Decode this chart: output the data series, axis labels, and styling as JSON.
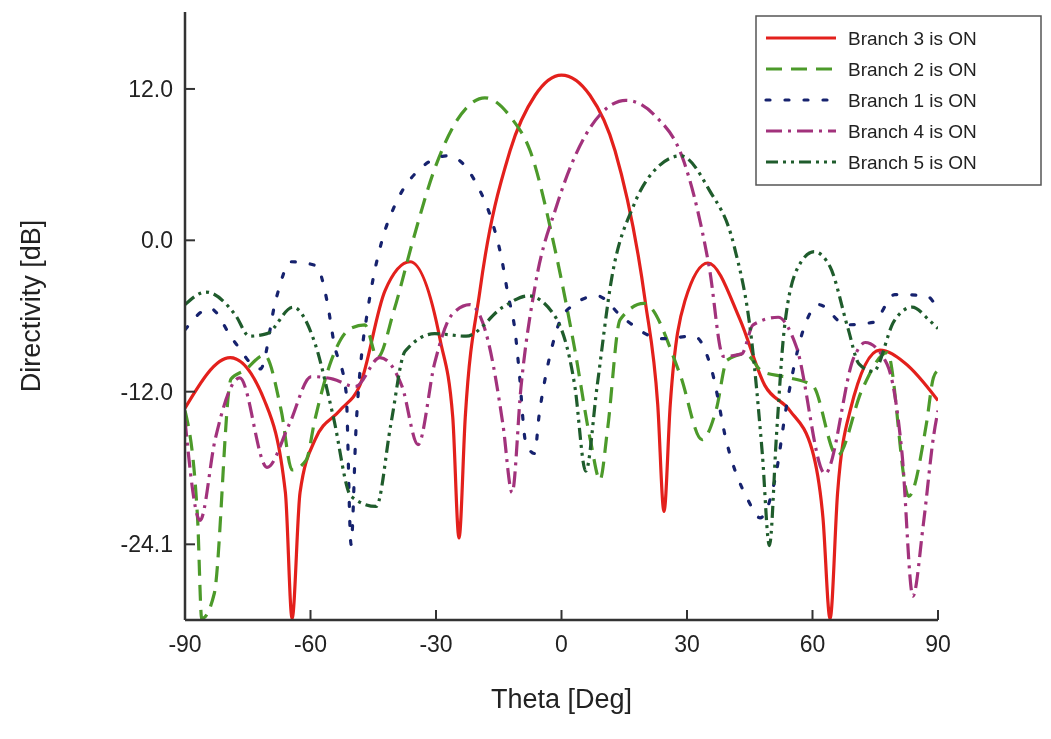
{
  "chart_data": {
    "type": "line",
    "xlabel": "Theta [Deg]",
    "ylabel": "Directivity [dB]",
    "xlim": [
      -90,
      90
    ],
    "xticks": [
      -90,
      -60,
      -30,
      0,
      30,
      60,
      90
    ],
    "ylim": [
      -30.1,
      18.1
    ],
    "yticks": [
      {
        "value": 12,
        "label": "12.0"
      },
      {
        "value": 0,
        "label": "0.0"
      },
      {
        "value": -12,
        "label": "-12.0"
      },
      {
        "value": -24.1,
        "label": "-24.1"
      }
    ],
    "grid": false,
    "legend": "top right",
    "series": [
      {
        "name": "Branch 3 is ON",
        "color": "#e3201c",
        "line_style": "solid",
        "x": [
          -90,
          -79.2,
          -71,
          -66,
          -64.4,
          -62.5,
          -58.9,
          -53,
          -48.2,
          -42.2,
          -36.2,
          -29,
          -26,
          -24.5,
          -23,
          -19.5,
          -12.3,
          -6.3,
          0,
          6.8,
          12.8,
          20,
          23,
          24.5,
          26,
          29.5,
          35,
          42.7,
          48.6,
          54.6,
          59.9,
          62.5,
          64.2,
          66,
          69,
          76.1,
          82,
          90
        ],
        "values": [
          -13.3,
          -9.3,
          -12.7,
          -20,
          -30,
          -20,
          -15.8,
          -13.5,
          -11.5,
          -4,
          -1.7,
          -7.9,
          -14,
          -23.6,
          -14,
          -4,
          7.1,
          11.5,
          13.1,
          11.5,
          7.1,
          -4.8,
          -13,
          -21.5,
          -13,
          -4.8,
          -1.8,
          -6.3,
          -11.5,
          -13.5,
          -16.6,
          -22,
          -30,
          -20,
          -13.5,
          -8.7,
          -9.7,
          -12.7
        ]
      },
      {
        "name": "Branch 2 is ON",
        "color": "#4c9a2a",
        "line_style": "dashed",
        "x": [
          -90,
          -87,
          -86,
          -83,
          -79,
          -75.7,
          -71,
          -67,
          -64.4,
          -61,
          -59,
          -55,
          -50.5,
          -47,
          -44,
          -40,
          -35.5,
          -30.5,
          -25,
          -18.3,
          -12,
          -7.5,
          -1.5,
          3.2,
          7,
          9.2,
          11,
          14,
          19.7,
          28.3,
          33.6,
          37,
          39.6,
          43.9,
          48,
          53,
          60,
          65.9,
          71.9,
          77.9,
          83,
          87.2,
          88.9,
          90
        ],
        "values": [
          -13.5,
          -22,
          -30,
          -28,
          -11,
          -10.3,
          -9.1,
          -13.5,
          -18.2,
          -17.4,
          -14.3,
          -9.5,
          -7,
          -6.7,
          -9.3,
          -5.5,
          0,
          5.5,
          9.5,
          11.3,
          9.7,
          7.1,
          -0.8,
          -8.7,
          -16,
          -19,
          -15,
          -6.3,
          -5,
          -10.6,
          -15.8,
          -13.4,
          -9.5,
          -9,
          -10.4,
          -10.8,
          -11.5,
          -17.1,
          -11.8,
          -8.9,
          -20.3,
          -14.6,
          -10.9,
          -10.3
        ]
      },
      {
        "name": "Branch 1 is ON",
        "color": "#16226e",
        "line_style": "dotted",
        "x": [
          -90,
          -84,
          -78.5,
          -72,
          -68.2,
          -64.7,
          -58.7,
          -56,
          -54.4,
          -51.5,
          -50.3,
          -49.1,
          -47.7,
          -46.5,
          -45,
          -42.9,
          -39.8,
          -35.5,
          -27.1,
          -20.2,
          -16.6,
          -14.4,
          -12.8,
          -11.1,
          -10.2,
          -8.5,
          -6.4,
          -5.4,
          -4.2,
          -2.3,
          0.8,
          8.5,
          14.9,
          23.8,
          31.7,
          36,
          39.4,
          44.6,
          47.5,
          51,
          53.9,
          57.7,
          61.5,
          68,
          74.5,
          79.7,
          87.2,
          90
        ],
        "values": [
          -7.1,
          -5.4,
          -7.9,
          -10.2,
          -4.6,
          -1.7,
          -2,
          -4.9,
          -8.1,
          -12,
          -24.1,
          -14.8,
          -8.8,
          -5.9,
          -3,
          0,
          2.8,
          5.1,
          6.7,
          4.4,
          1.5,
          -1.3,
          -4.3,
          -7.2,
          -10.1,
          -16.1,
          -16.9,
          -14,
          -11.5,
          -8.5,
          -5.7,
          -4.4,
          -6.2,
          -7.8,
          -7.6,
          -10.4,
          -15.9,
          -20.6,
          -22,
          -19,
          -12.9,
          -7.2,
          -5.1,
          -6.7,
          -6.5,
          -4.3,
          -4.4,
          -5.5
        ]
      },
      {
        "name": "Branch 4 is ON",
        "color": "#a2327c",
        "line_style": "dashdot",
        "x": [
          -90,
          -86.4,
          -82.8,
          -76.9,
          -70.4,
          -65.1,
          -59.8,
          -54.6,
          -49.3,
          -43.4,
          -38.1,
          -34.3,
          -30.3,
          -26.2,
          -21.9,
          -17.6,
          -14,
          -11.8,
          -9.7,
          -6.3,
          -1.1,
          6.8,
          15.4,
          22.3,
          29.3,
          31.7,
          35.3,
          38.7,
          43.1,
          45.8,
          51.8,
          56.1,
          63,
          70,
          72.6,
          77.8,
          81.4,
          84,
          86.5,
          89,
          90
        ],
        "values": [
          -14.3,
          -22.2,
          -15.8,
          -10.9,
          -18,
          -14.6,
          -10.8,
          -11,
          -11.6,
          -9.3,
          -11.6,
          -16.2,
          -9.7,
          -5.9,
          -5.1,
          -7.9,
          -14.6,
          -20,
          -11.7,
          -3.6,
          2.8,
          8.9,
          11.1,
          9.9,
          6.2,
          3.5,
          -2.1,
          -9.2,
          -9,
          -6.7,
          -6.1,
          -8.4,
          -18.5,
          -9.2,
          -8.1,
          -9.8,
          -16.9,
          -28.2,
          -22.5,
          -15.4,
          -13.5
        ]
      },
      {
        "name": "Branch 5 is ON",
        "color": "#1f5c2c",
        "line_style": "dashdotdot",
        "x": [
          -90,
          -85,
          -78,
          -74.6,
          -70.4,
          -64.2,
          -58.9,
          -54.6,
          -50.3,
          -44.3,
          -40.8,
          -37.4,
          -30.3,
          -22.8,
          -14,
          -8,
          -1.8,
          3.2,
          5.8,
          8.5,
          12,
          17.3,
          23.3,
          28.5,
          35.3,
          41.3,
          45.4,
          48,
          49.7,
          51.4,
          53.2,
          56.6,
          60.4,
          64.2,
          68.5,
          71.1,
          74.5,
          79.5,
          83.8,
          88.1,
          90
        ],
        "values": [
          -5.1,
          -4.1,
          -5.9,
          -7.6,
          -7.4,
          -5.3,
          -8.2,
          -13.9,
          -20.3,
          -21.1,
          -14.6,
          -8.8,
          -7.4,
          -7.6,
          -5.3,
          -4.4,
          -5.9,
          -11.6,
          -18.3,
          -11.6,
          -3,
          2.8,
          5.9,
          6.7,
          4,
          -0.5,
          -7.8,
          -16.9,
          -24.2,
          -15.4,
          -7.2,
          -2.1,
          -0.9,
          -2.1,
          -7,
          -9.8,
          -10.4,
          -6.4,
          -5.3,
          -6.4,
          -7
        ]
      }
    ]
  }
}
